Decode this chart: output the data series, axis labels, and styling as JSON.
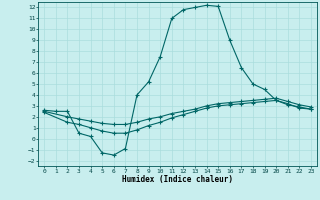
{
  "xlabel": "Humidex (Indice chaleur)",
  "background_color": "#c8eeee",
  "grid_color": "#aadddd",
  "line_color": "#006666",
  "xlim": [
    -0.5,
    23.5
  ],
  "ylim": [
    -2.5,
    12.5
  ],
  "xticks": [
    0,
    1,
    2,
    3,
    4,
    5,
    6,
    7,
    8,
    9,
    10,
    11,
    12,
    13,
    14,
    15,
    16,
    17,
    18,
    19,
    20,
    21,
    22,
    23
  ],
  "yticks": [
    -2,
    -1,
    0,
    1,
    2,
    3,
    4,
    5,
    6,
    7,
    8,
    9,
    10,
    11,
    12
  ],
  "line1_x": [
    0,
    1,
    2,
    3,
    4,
    5,
    6,
    7,
    8,
    9,
    10,
    11,
    12,
    13,
    14,
    15,
    16,
    17,
    18,
    19,
    20,
    21,
    22,
    23
  ],
  "line1_y": [
    2.6,
    2.5,
    2.5,
    0.5,
    0.2,
    -1.3,
    -1.5,
    -0.9,
    4.0,
    5.2,
    7.5,
    11.0,
    11.8,
    12.0,
    12.2,
    12.1,
    9.0,
    6.5,
    5.0,
    4.5,
    3.5,
    3.2,
    2.8,
    2.7
  ],
  "line2_x": [
    0,
    2,
    3,
    4,
    5,
    6,
    7,
    8,
    9,
    10,
    11,
    12,
    13,
    14,
    15,
    16,
    17,
    18,
    19,
    20,
    21,
    22,
    23
  ],
  "line2_y": [
    2.5,
    2.0,
    1.8,
    1.6,
    1.4,
    1.3,
    1.3,
    1.5,
    1.8,
    2.0,
    2.3,
    2.5,
    2.7,
    3.0,
    3.2,
    3.3,
    3.4,
    3.5,
    3.6,
    3.7,
    3.4,
    3.1,
    2.9
  ],
  "line3_x": [
    0,
    2,
    3,
    4,
    5,
    6,
    7,
    8,
    9,
    10,
    11,
    12,
    13,
    14,
    15,
    16,
    17,
    18,
    19,
    20,
    21,
    22,
    23
  ],
  "line3_y": [
    2.4,
    1.5,
    1.3,
    1.0,
    0.7,
    0.5,
    0.5,
    0.8,
    1.2,
    1.5,
    1.9,
    2.2,
    2.5,
    2.8,
    3.0,
    3.1,
    3.2,
    3.3,
    3.4,
    3.5,
    3.1,
    2.9,
    2.7
  ]
}
